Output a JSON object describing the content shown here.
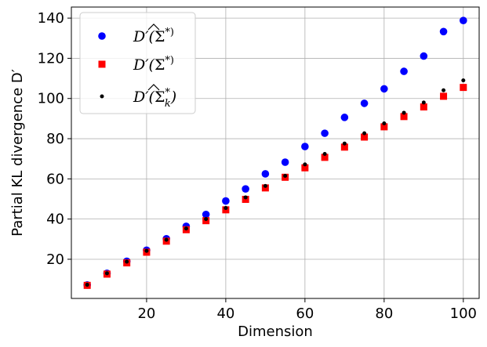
{
  "chart_data": {
    "type": "scatter",
    "title": "",
    "xlabel": "Dimension",
    "ylabel": "Partial KL divergence D′",
    "xlim": [
      1,
      104
    ],
    "ylim": [
      0.5,
      145.5
    ],
    "xticks": [
      20,
      40,
      60,
      80,
      100
    ],
    "yticks": [
      20,
      40,
      60,
      80,
      100,
      120,
      140
    ],
    "grid": true,
    "legend_position": "top-left",
    "x": [
      5,
      10,
      15,
      20,
      25,
      30,
      35,
      40,
      45,
      50,
      55,
      60,
      65,
      70,
      75,
      80,
      85,
      90,
      95,
      100
    ],
    "series": [
      {
        "name": "D′(Σ̂*)",
        "name_parts": [
          "D′(",
          "Σ",
          "*)"
        ],
        "marker": "circle",
        "color": "#0000ff",
        "values": [
          7.2,
          13.0,
          19.0,
          24.5,
          30.2,
          36.4,
          42.3,
          49.0,
          55.0,
          62.5,
          68.3,
          76.1,
          82.7,
          90.6,
          97.6,
          104.8,
          113.5,
          121.1,
          133.3,
          138.8
        ]
      },
      {
        "name": "D′(Σ*)",
        "name_parts": [
          "D′(",
          "Σ",
          "*)"
        ],
        "marker": "square",
        "color": "#ff0000",
        "values": [
          7.0,
          12.6,
          18.2,
          23.5,
          29.0,
          34.7,
          39.2,
          44.6,
          49.8,
          55.5,
          60.8,
          65.5,
          70.7,
          75.8,
          80.8,
          85.9,
          91.0,
          95.8,
          101.1,
          105.5
        ]
      },
      {
        "name": "D′(Σ̂ₖ*)",
        "name_parts": [
          "D′(",
          "Σ",
          "*",
          "k",
          ")"
        ],
        "marker": "dot",
        "color": "#000000",
        "values": [
          7.3,
          13.0,
          18.8,
          24.2,
          29.7,
          35.3,
          40.0,
          45.5,
          50.8,
          56.5,
          61.5,
          67.2,
          72.4,
          77.6,
          82.7,
          87.6,
          92.9,
          98.0,
          104.1,
          109.0
        ]
      }
    ]
  }
}
